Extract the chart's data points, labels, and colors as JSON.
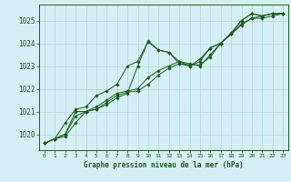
{
  "bg_color": "#d6eff5",
  "grid_color": "#b0d8d8",
  "line_color": "#1a5c1a",
  "title": "Graphe pression niveau de la mer (hPa)",
  "xlim": [
    -0.5,
    23.5
  ],
  "ylim": [
    1019.3,
    1025.7
  ],
  "yticks": [
    1020,
    1021,
    1022,
    1023,
    1024,
    1025
  ],
  "xticks": [
    0,
    1,
    2,
    3,
    4,
    5,
    6,
    7,
    8,
    9,
    10,
    11,
    12,
    13,
    14,
    15,
    16,
    17,
    18,
    19,
    20,
    21,
    22,
    23
  ],
  "series": [
    [
      1019.6,
      1019.8,
      1019.9,
      1020.5,
      1021.0,
      1021.1,
      1021.3,
      1021.6,
      1021.8,
      1023.0,
      1024.1,
      1023.7,
      1023.6,
      1023.1,
      1023.0,
      1023.3,
      1023.8,
      1024.0,
      1024.4,
      1025.0,
      1025.3,
      1025.2,
      1025.3,
      1025.3
    ],
    [
      1019.6,
      1019.8,
      1020.0,
      1021.0,
      1021.0,
      1021.2,
      1021.5,
      1021.8,
      1021.9,
      1022.0,
      1022.5,
      1022.8,
      1023.0,
      1023.2,
      1023.1,
      1023.0,
      1023.5,
      1024.0,
      1024.4,
      1024.8,
      1025.1,
      1025.2,
      1025.3,
      1025.3
    ],
    [
      1019.6,
      1019.8,
      1020.0,
      1020.8,
      1021.0,
      1021.1,
      1021.4,
      1021.7,
      1021.85,
      1021.9,
      1022.2,
      1022.6,
      1022.9,
      1023.1,
      1023.05,
      1023.05,
      1023.4,
      1024.0,
      1024.4,
      1024.85,
      1025.1,
      1025.1,
      1025.2,
      1025.3
    ],
    [
      1019.6,
      1019.8,
      1020.5,
      1021.1,
      1021.2,
      1021.7,
      1021.9,
      1022.2,
      1023.0,
      1023.2,
      1024.05,
      1023.7,
      1023.6,
      1023.2,
      1023.0,
      1023.2,
      1023.8,
      1024.0,
      1024.45,
      1025.0,
      1025.3,
      1025.2,
      1025.3,
      1025.3
    ]
  ]
}
